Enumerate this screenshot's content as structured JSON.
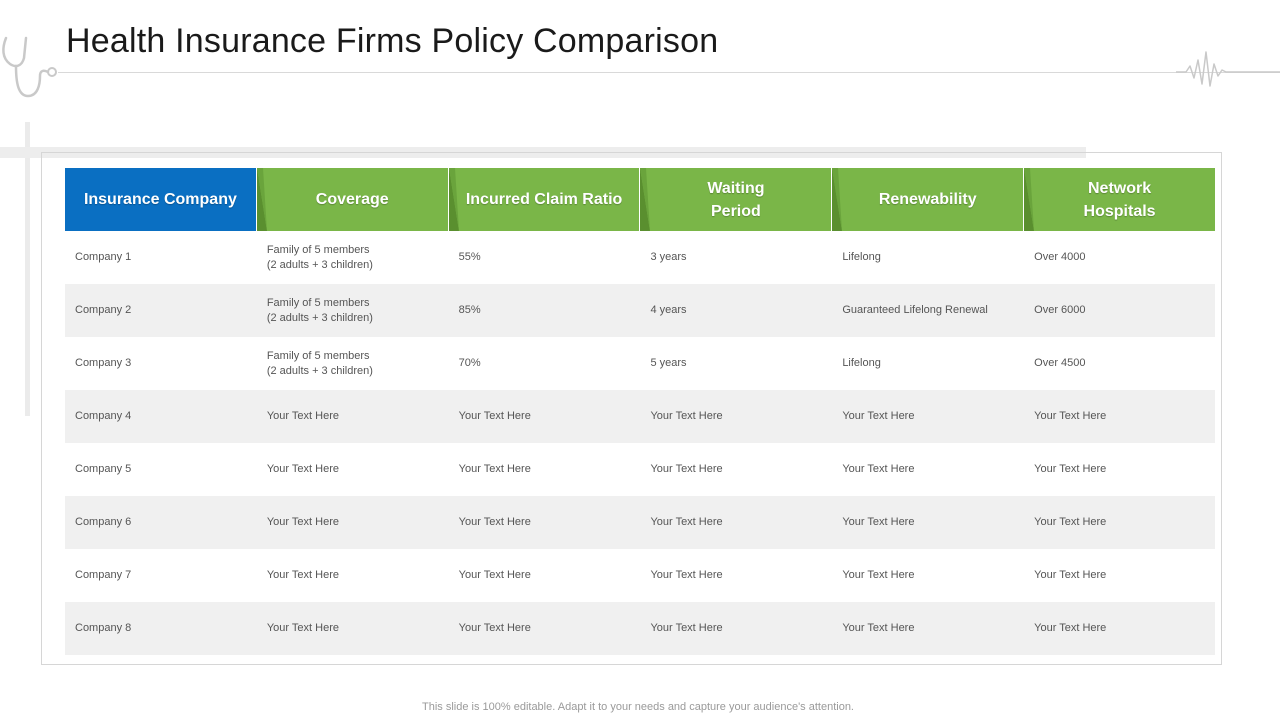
{
  "slide": {
    "title": "Health Insurance Firms Policy Comparison",
    "footer": "This slide is 100% editable. Adapt it to your needs and capture your audience's attention."
  },
  "icons": {
    "top_left": "stethoscope-icon",
    "top_right": "heartbeat-line-icon"
  },
  "colors": {
    "header_primary": "#0a6fc2",
    "header_secondary": "#7ab648",
    "row_alt": "#f0f0f0"
  },
  "table": {
    "headers": [
      "Insurance Company",
      "Coverage",
      "Incurred Claim Ratio",
      "Waiting\nPeriod",
      "Renewability",
      "Network\nHospitals"
    ],
    "rows": [
      {
        "company": "Company 1",
        "coverage_line1": "Family of 5 members",
        "coverage_line2": "(2 adults + 3 children)",
        "claim_ratio": "55%",
        "waiting_period": "3 years",
        "renewability": "Lifelong",
        "network_hospitals": "Over 4000"
      },
      {
        "company": "Company 2",
        "coverage_line1": "Family of 5 members",
        "coverage_line2": "(2 adults + 3 children)",
        "claim_ratio": "85%",
        "waiting_period": "4 years",
        "renewability": "Guaranteed Lifelong Renewal",
        "network_hospitals": "Over 6000"
      },
      {
        "company": "Company 3",
        "coverage_line1": "Family of 5 members",
        "coverage_line2": "(2 adults + 3 children)",
        "claim_ratio": "70%",
        "waiting_period": "5 years",
        "renewability": "Lifelong",
        "network_hospitals": "Over 4500"
      },
      {
        "company": "Company 4",
        "coverage_line1": "Your Text Here",
        "coverage_line2": "",
        "claim_ratio": "Your Text Here",
        "waiting_period": "Your Text Here",
        "renewability": "Your Text Here",
        "network_hospitals": "Your Text Here"
      },
      {
        "company": "Company 5",
        "coverage_line1": "Your Text Here",
        "coverage_line2": "",
        "claim_ratio": "Your Text Here",
        "waiting_period": "Your Text Here",
        "renewability": "Your Text Here",
        "network_hospitals": "Your Text Here"
      },
      {
        "company": "Company 6",
        "coverage_line1": "Your Text Here",
        "coverage_line2": "",
        "claim_ratio": "Your Text Here",
        "waiting_period": "Your Text Here",
        "renewability": "Your Text Here",
        "network_hospitals": "Your Text Here"
      },
      {
        "company": "Company 7",
        "coverage_line1": "Your Text Here",
        "coverage_line2": "",
        "claim_ratio": "Your Text Here",
        "waiting_period": "Your Text Here",
        "renewability": "Your Text Here",
        "network_hospitals": "Your Text Here"
      },
      {
        "company": "Company 8",
        "coverage_line1": "Your Text Here",
        "coverage_line2": "",
        "claim_ratio": "Your Text Here",
        "waiting_period": "Your Text Here",
        "renewability": "Your Text Here",
        "network_hospitals": "Your Text Here"
      }
    ]
  }
}
